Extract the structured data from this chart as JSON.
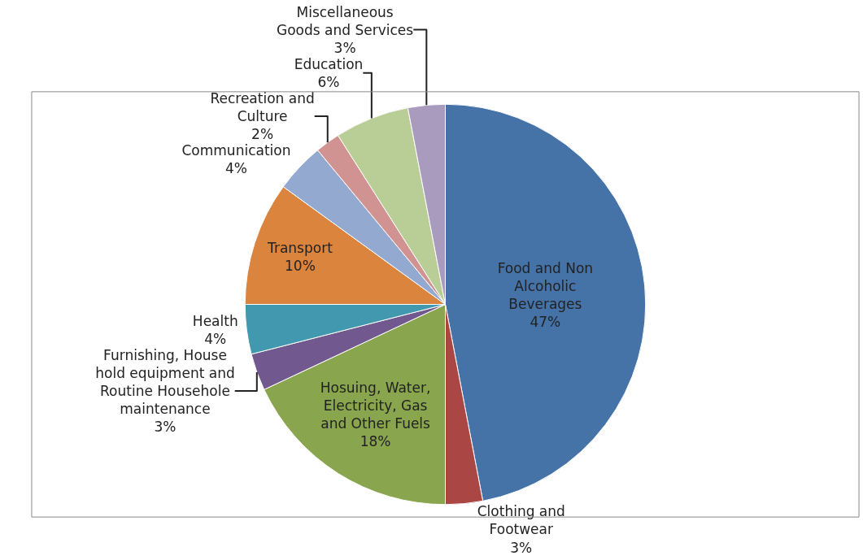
{
  "chart_data": {
    "type": "pie",
    "categories": [
      "Food and Non Alcoholic Beverages",
      "Clothing and Footwear",
      "Hosuing, Water, Electricity, Gas and Other Fuels",
      "Furnishing, House hold equipment and Routine Househole maintenance",
      "Health",
      "Transport",
      "Communication",
      "Recreation and Culture",
      "Education",
      "Miscellaneous Goods and Services"
    ],
    "values": [
      47,
      3,
      18,
      3,
      4,
      10,
      4,
      2,
      6,
      3
    ],
    "value_labels": [
      "47%",
      "3%",
      "18%",
      "3%",
      "4%",
      "10%",
      "4%",
      "2%",
      "6%",
      "3%"
    ],
    "colors": [
      "#4572a7",
      "#aa4643",
      "#89a54e",
      "#71588f",
      "#4198af",
      "#db843d",
      "#93a9cf",
      "#d19392",
      "#b9cd96",
      "#a99bbd"
    ],
    "legend": false
  }
}
